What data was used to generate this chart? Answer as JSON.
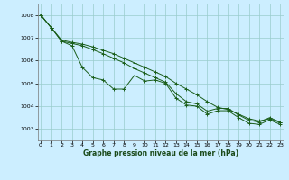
{
  "title": "Graphe pression niveau de la mer (hPa)",
  "background_color": "#cceeff",
  "grid_color": "#99cccc",
  "line_color": "#1a5e1a",
  "ylim": [
    1002.5,
    1008.5
  ],
  "xlim": [
    -0.3,
    23.3
  ],
  "yticks": [
    1003,
    1004,
    1005,
    1006,
    1007,
    1008
  ],
  "xticks": [
    0,
    1,
    2,
    3,
    4,
    5,
    6,
    7,
    8,
    9,
    10,
    11,
    12,
    13,
    14,
    15,
    16,
    17,
    18,
    19,
    20,
    21,
    22,
    23
  ],
  "s1": [
    1008.0,
    1007.45,
    1006.85,
    1006.65,
    1005.7,
    1005.25,
    1005.15,
    1004.75,
    1004.75,
    1005.35,
    1005.1,
    1005.15,
    1005.0,
    1004.35,
    1004.05,
    1004.0,
    1003.65,
    1003.8,
    1003.8,
    1003.5,
    1003.25,
    1003.2,
    1003.4,
    1003.2
  ],
  "s2": [
    1008.0,
    1007.45,
    1006.9,
    1006.8,
    1006.72,
    1006.6,
    1006.45,
    1006.3,
    1006.1,
    1005.9,
    1005.7,
    1005.5,
    1005.3,
    1005.0,
    1004.75,
    1004.5,
    1004.2,
    1003.95,
    1003.85,
    1003.65,
    1003.45,
    1003.35,
    1003.45,
    1003.28
  ],
  "s3": [
    1008.0,
    1007.45,
    1006.85,
    1006.75,
    1006.65,
    1006.48,
    1006.3,
    1006.1,
    1005.9,
    1005.65,
    1005.45,
    1005.25,
    1005.05,
    1004.55,
    1004.2,
    1004.1,
    1003.78,
    1003.9,
    1003.9,
    1003.62,
    1003.38,
    1003.3,
    1003.5,
    1003.3
  ]
}
